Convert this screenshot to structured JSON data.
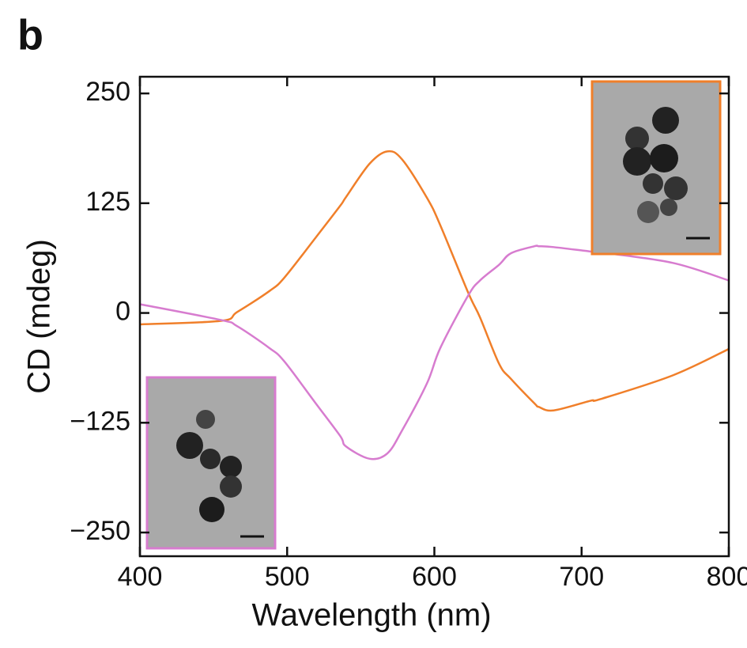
{
  "panel_label": "b",
  "chart_data": {
    "type": "line",
    "x_label": "Wavelength (nm)",
    "y_label": "CD (mdeg)",
    "x": [
      400,
      455,
      466,
      488,
      498,
      519,
      536,
      540,
      556,
      568,
      578,
      595,
      604,
      623,
      631,
      644,
      652,
      668,
      671,
      681,
      706,
      713,
      762,
      800
    ],
    "series": [
      {
        "color": "#f07f2a",
        "values": [
          -13,
          -9,
          1,
          25,
          40,
          85,
          122,
          132,
          170,
          184,
          175,
          131,
          100,
          23,
          -5,
          -58,
          -75,
          -103,
          -107,
          -111,
          -100,
          -98,
          -71,
          -41
        ]
      },
      {
        "color": "#d77ccf",
        "values": [
          10,
          -8,
          -15,
          -40,
          -55,
          -102,
          -140,
          -152,
          -166,
          -160,
          -134,
          -80,
          -40,
          20,
          37,
          55,
          68,
          76,
          76,
          75,
          70,
          69,
          57,
          37
        ]
      }
    ],
    "xlim": [
      400,
      800
    ],
    "ylim": [
      -277,
      269
    ],
    "xticks": [
      400,
      500,
      600,
      700,
      800
    ],
    "yticks": [
      {
        "value": -250,
        "label": "−250"
      },
      {
        "value": -125,
        "label": "−125"
      },
      0,
      125,
      250
    ],
    "grid": false
  }
}
